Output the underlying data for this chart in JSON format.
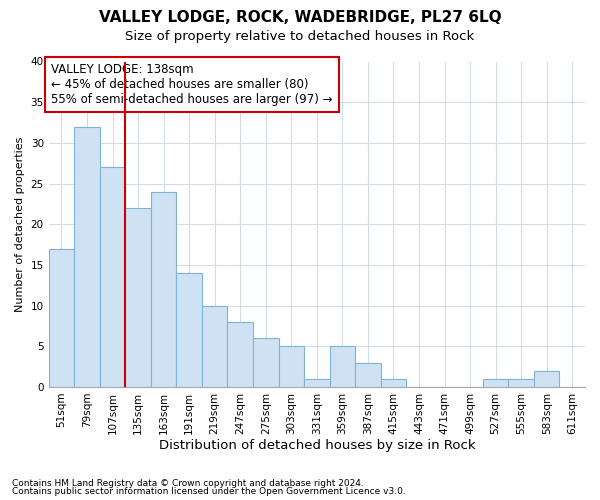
{
  "title": "VALLEY LODGE, ROCK, WADEBRIDGE, PL27 6LQ",
  "subtitle": "Size of property relative to detached houses in Rock",
  "xlabel": "Distribution of detached houses by size in Rock",
  "ylabel": "Number of detached properties",
  "footnote1": "Contains HM Land Registry data © Crown copyright and database right 2024.",
  "footnote2": "Contains public sector information licensed under the Open Government Licence v3.0.",
  "categories": [
    "51sqm",
    "79sqm",
    "107sqm",
    "135sqm",
    "163sqm",
    "191sqm",
    "219sqm",
    "247sqm",
    "275sqm",
    "303sqm",
    "331sqm",
    "359sqm",
    "387sqm",
    "415sqm",
    "443sqm",
    "471sqm",
    "499sqm",
    "527sqm",
    "555sqm",
    "583sqm",
    "611sqm"
  ],
  "values": [
    17,
    32,
    27,
    22,
    24,
    14,
    10,
    8,
    6,
    5,
    1,
    5,
    3,
    1,
    0,
    0,
    0,
    1,
    1,
    2,
    0
  ],
  "bar_color": "#cfe2f3",
  "bar_edge_color": "#7fb3d6",
  "vline_color": "#cc0000",
  "vline_x_index": 3,
  "annotation_title": "VALLEY LODGE: 138sqm",
  "annotation_line2": "← 45% of detached houses are smaller (80)",
  "annotation_line3": "55% of semi-detached houses are larger (97) →",
  "annotation_box_facecolor": "#ffffff",
  "annotation_box_edgecolor": "#cc0000",
  "ylim": [
    0,
    40
  ],
  "yticks": [
    0,
    5,
    10,
    15,
    20,
    25,
    30,
    35,
    40
  ],
  "fig_background": "#ffffff",
  "plot_background": "#ffffff",
  "grid_color": "#d0dce8",
  "title_fontsize": 11,
  "subtitle_fontsize": 9.5,
  "xlabel_fontsize": 9.5,
  "ylabel_fontsize": 8,
  "tick_fontsize": 7.5,
  "annotation_fontsize": 8.5,
  "footnote_fontsize": 6.5
}
